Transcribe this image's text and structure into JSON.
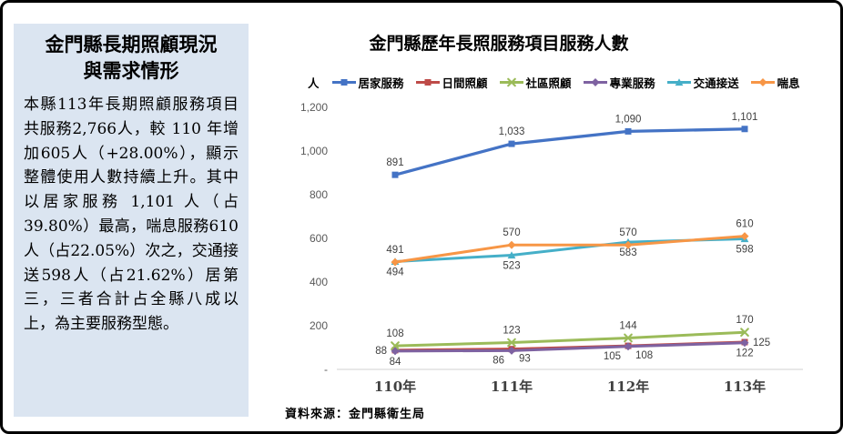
{
  "frame": {
    "bg_color": "#ffffff",
    "border_color": "#000000"
  },
  "sidebar": {
    "bg_color": "#DBE5F1",
    "title_line1": "金門縣長期照顧現況",
    "title_line2": "與需求情形",
    "body": "本縣113年長期照顧服務項目共服務2,766人，較 110 年增加605人（+28.00%），顯示整體使用人數持續上升。其中以居家服務 1,101 人（占39.80%）最高，喘息服務610人（占22.05%）次之，交通接送598人（占21.62%）居第三，三者合計占全縣八成以上，為主要服務型態。"
  },
  "chart": {
    "title": "金門縣歷年長照服務項目服務人數",
    "y_unit_label": "人",
    "source_note": "資料來源：金門縣衛生局"
  },
  "chart_data": {
    "type": "line",
    "title": "金門縣歷年長照服務項目服務人數",
    "ylabel": "人",
    "categories": [
      "110年",
      "111年",
      "112年",
      "113年"
    ],
    "ylim": [
      0,
      1200
    ],
    "grid": false,
    "legend_position": "top",
    "y_ticks": [
      {
        "value": 0,
        "label": "-"
      },
      {
        "value": 200,
        "label": "200"
      },
      {
        "value": 400,
        "label": "400"
      },
      {
        "value": 600,
        "label": "600"
      },
      {
        "value": 800,
        "label": "800"
      },
      {
        "value": 1000,
        "label": "1,000"
      },
      {
        "value": 1200,
        "label": "1,200"
      }
    ],
    "series": [
      {
        "name": "居家服務",
        "color": "#4473C5",
        "marker": "square",
        "values": [
          891,
          1033,
          1090,
          1101
        ],
        "labels": [
          "891",
          "1,033",
          "1,090",
          "1,101"
        ],
        "label_placement": [
          "above",
          "above",
          "above",
          "above"
        ]
      },
      {
        "name": "日間照顧",
        "color": "#BE4B48",
        "marker": "square",
        "values": [
          88,
          93,
          108,
          125
        ],
        "labels": [
          "88",
          "93",
          "108",
          "125"
        ],
        "label_placement": [
          "left",
          "below-right",
          "below-right",
          "right"
        ]
      },
      {
        "name": "社區照顧",
        "color": "#9BBB59",
        "marker": "x",
        "values": [
          108,
          123,
          144,
          170
        ],
        "labels": [
          "108",
          "123",
          "144",
          "170"
        ],
        "label_placement": [
          "above",
          "above",
          "above",
          "above"
        ]
      },
      {
        "name": "專業服務",
        "color": "#7E62A1",
        "marker": "diamond",
        "values": [
          84,
          86,
          105,
          122
        ],
        "labels": [
          "84",
          "86",
          "105",
          "122"
        ],
        "label_placement": [
          "below",
          "below-left",
          "below-left",
          "below"
        ]
      },
      {
        "name": "交通接送",
        "color": "#45AFC8",
        "marker": "triangle",
        "values": [
          494,
          523,
          583,
          598
        ],
        "labels": [
          "494",
          "523",
          "583",
          "598"
        ],
        "label_placement": [
          "below",
          "below",
          "below",
          "below"
        ]
      },
      {
        "name": "喘息",
        "color": "#F79646",
        "marker": "diamond",
        "values": [
          491,
          570,
          570,
          610
        ],
        "labels": [
          "491",
          "570",
          "570",
          "610"
        ],
        "label_placement": [
          "above",
          "above",
          "above",
          "above"
        ]
      }
    ]
  }
}
